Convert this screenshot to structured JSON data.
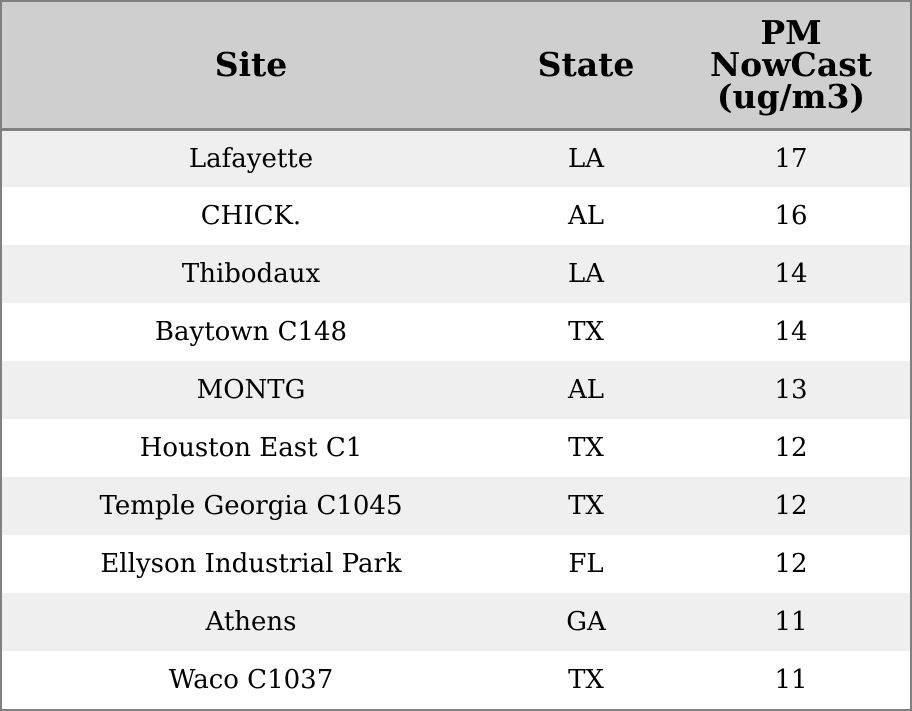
{
  "chart_data": {
    "type": "table",
    "columns": [
      "Site",
      "State",
      "PM NowCast (ug/m3)"
    ],
    "header_lines": {
      "site": [
        "Site"
      ],
      "state": [
        "State"
      ],
      "pm": [
        "PM",
        "NowCast",
        "(ug/m3)"
      ]
    },
    "rows": [
      {
        "site": "Lafayette",
        "state": "LA",
        "pm": "17"
      },
      {
        "site": "CHICK.",
        "state": "AL",
        "pm": "16"
      },
      {
        "site": "Thibodaux",
        "state": "LA",
        "pm": "14"
      },
      {
        "site": "Baytown C148",
        "state": "TX",
        "pm": "14"
      },
      {
        "site": "MONTG",
        "state": "AL",
        "pm": "13"
      },
      {
        "site": "Houston East C1",
        "state": "TX",
        "pm": "12"
      },
      {
        "site": "Temple Georgia C1045",
        "state": "TX",
        "pm": "12"
      },
      {
        "site": "Ellyson Industrial Park",
        "state": "FL",
        "pm": "12"
      },
      {
        "site": "Athens",
        "state": "GA",
        "pm": "11"
      },
      {
        "site": "Waco C1037",
        "state": "TX",
        "pm": "11"
      }
    ],
    "colors": {
      "header_bg": "#cfcfcf",
      "row_band": "#efefef",
      "row_plain": "#ffffff",
      "border": "#808080"
    }
  }
}
